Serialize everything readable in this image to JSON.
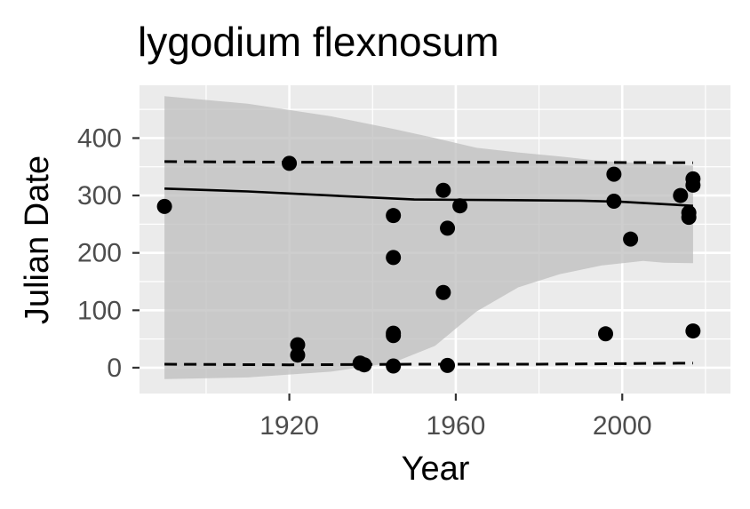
{
  "chart_data": {
    "type": "scatter",
    "title": "lygodium flexnosum",
    "xlabel": "Year",
    "ylabel": "Julian Date",
    "xlim": [
      1884,
      2026
    ],
    "ylim": [
      -45,
      492
    ],
    "x_ticks": [
      1920,
      1960,
      2000
    ],
    "y_ticks": [
      0,
      100,
      200,
      300,
      400
    ],
    "grid": true,
    "legend": "none",
    "colors": {
      "panel": "#ebebeb",
      "grid": "#ffffff",
      "points": "#000000",
      "ribbon": "#bdbdbd",
      "tick_label": "#4d4d4d"
    },
    "points": [
      {
        "x": 1890,
        "y": 281
      },
      {
        "x": 1920,
        "y": 356
      },
      {
        "x": 1922,
        "y": 40
      },
      {
        "x": 1922,
        "y": 22
      },
      {
        "x": 1937,
        "y": 8
      },
      {
        "x": 1938,
        "y": 5
      },
      {
        "x": 1945,
        "y": 265
      },
      {
        "x": 1945,
        "y": 192
      },
      {
        "x": 1945,
        "y": 60
      },
      {
        "x": 1945,
        "y": 56
      },
      {
        "x": 1945,
        "y": 3
      },
      {
        "x": 1957,
        "y": 309
      },
      {
        "x": 1957,
        "y": 131
      },
      {
        "x": 1958,
        "y": 243
      },
      {
        "x": 1958,
        "y": 4
      },
      {
        "x": 1961,
        "y": 282
      },
      {
        "x": 1996,
        "y": 59
      },
      {
        "x": 1998,
        "y": 337
      },
      {
        "x": 1998,
        "y": 290
      },
      {
        "x": 2002,
        "y": 224
      },
      {
        "x": 2014,
        "y": 300
      },
      {
        "x": 2016,
        "y": 270
      },
      {
        "x": 2016,
        "y": 262
      },
      {
        "x": 2017,
        "y": 329
      },
      {
        "x": 2017,
        "y": 318
      },
      {
        "x": 2017,
        "y": 64
      }
    ],
    "fit_line": [
      {
        "x": 1890,
        "y": 312
      },
      {
        "x": 1910,
        "y": 307
      },
      {
        "x": 1930,
        "y": 300
      },
      {
        "x": 1950,
        "y": 293
      },
      {
        "x": 1970,
        "y": 292
      },
      {
        "x": 1990,
        "y": 291
      },
      {
        "x": 2000,
        "y": 289
      },
      {
        "x": 2010,
        "y": 285
      },
      {
        "x": 2017,
        "y": 282
      }
    ],
    "ribbon": [
      {
        "x": 1890,
        "lower": -20,
        "upper": 473
      },
      {
        "x": 1910,
        "lower": -17,
        "upper": 460
      },
      {
        "x": 1930,
        "lower": -7,
        "upper": 438
      },
      {
        "x": 1945,
        "lower": 9,
        "upper": 416
      },
      {
        "x": 1955,
        "lower": 38,
        "upper": 400
      },
      {
        "x": 1965,
        "lower": 98,
        "upper": 383
      },
      {
        "x": 1975,
        "lower": 140,
        "upper": 375
      },
      {
        "x": 1985,
        "lower": 163,
        "upper": 368
      },
      {
        "x": 1995,
        "lower": 178,
        "upper": 360
      },
      {
        "x": 2005,
        "lower": 186,
        "upper": 356
      },
      {
        "x": 2010,
        "lower": 183,
        "upper": 354
      },
      {
        "x": 2017,
        "lower": 182,
        "upper": 352
      }
    ],
    "upper_dashed": [
      {
        "x": 1890,
        "y": 359
      },
      {
        "x": 1920,
        "y": 358
      },
      {
        "x": 1950,
        "y": 358
      },
      {
        "x": 1980,
        "y": 358
      },
      {
        "x": 2017,
        "y": 357
      }
    ],
    "lower_dashed": [
      {
        "x": 1890,
        "y": 6
      },
      {
        "x": 1920,
        "y": 5
      },
      {
        "x": 1950,
        "y": 6
      },
      {
        "x": 1980,
        "y": 6
      },
      {
        "x": 2017,
        "y": 8
      }
    ]
  }
}
